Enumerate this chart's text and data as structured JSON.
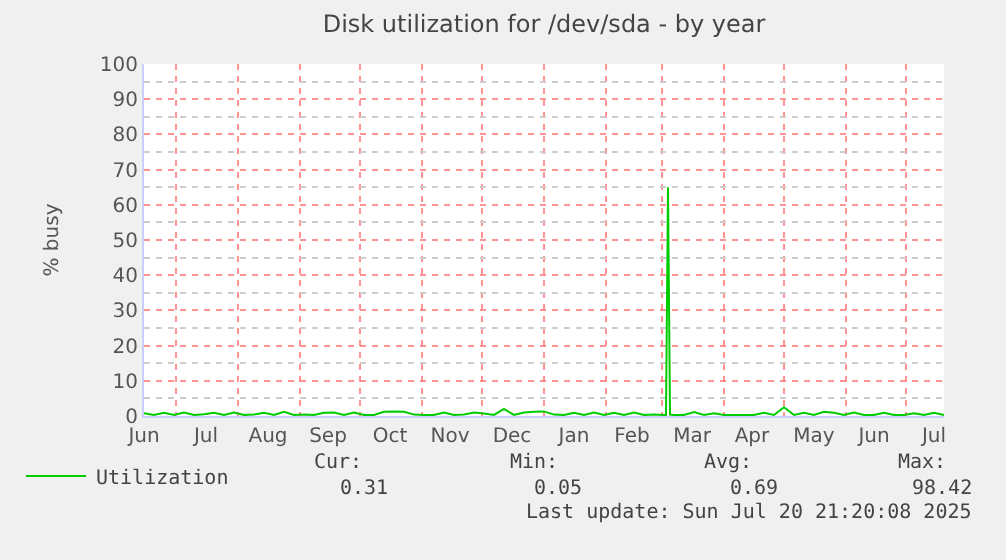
{
  "chart_data": {
    "type": "line",
    "title": "Disk utilization for /dev/sda - by year",
    "ylabel": "% busy",
    "x": [
      "2024-06-15",
      "2024-06-20",
      "2024-06-25",
      "2024-06-30",
      "2024-07-05",
      "2024-07-10",
      "2024-07-15",
      "2024-07-20",
      "2024-07-25",
      "2024-07-30",
      "2024-08-04",
      "2024-08-09",
      "2024-08-14",
      "2024-08-19",
      "2024-08-24",
      "2024-08-29",
      "2024-09-03",
      "2024-09-08",
      "2024-09-13",
      "2024-09-18",
      "2024-09-23",
      "2024-09-28",
      "2024-10-03",
      "2024-10-08",
      "2024-10-13",
      "2024-10-18",
      "2024-10-23",
      "2024-10-28",
      "2024-11-02",
      "2024-11-07",
      "2024-11-12",
      "2024-11-17",
      "2024-11-22",
      "2024-11-27",
      "2024-12-02",
      "2024-12-07",
      "2024-12-12",
      "2024-12-17",
      "2024-12-22",
      "2024-12-27",
      "2025-01-01",
      "2025-01-06",
      "2025-01-11",
      "2025-01-16",
      "2025-01-21",
      "2025-01-26",
      "2025-01-31",
      "2025-02-05",
      "2025-02-10",
      "2025-02-15",
      "2025-02-20",
      "2025-02-25",
      "2025-03-02",
      "2025-03-03",
      "2025-03-04",
      "2025-03-05",
      "2025-03-07",
      "2025-03-12",
      "2025-03-17",
      "2025-03-22",
      "2025-03-27",
      "2025-04-01",
      "2025-04-06",
      "2025-04-11",
      "2025-04-16",
      "2025-04-21",
      "2025-04-26",
      "2025-05-01",
      "2025-05-06",
      "2025-05-11",
      "2025-05-16",
      "2025-05-21",
      "2025-05-26",
      "2025-05-31",
      "2025-06-05",
      "2025-06-10",
      "2025-06-15",
      "2025-06-20",
      "2025-06-25",
      "2025-06-30",
      "2025-07-05",
      "2025-07-10",
      "2025-07-15",
      "2025-07-20"
    ],
    "series": [
      {
        "name": "Utilization",
        "color": "#00cc00",
        "values": [
          0.8,
          0.3,
          0.9,
          0.3,
          1.0,
          0.3,
          0.5,
          0.9,
          0.3,
          1.0,
          0.3,
          0.4,
          0.9,
          0.3,
          1.2,
          0.3,
          0.4,
          0.3,
          0.9,
          1.0,
          0.3,
          1.0,
          0.3,
          0.3,
          1.2,
          1.3,
          1.2,
          0.4,
          0.3,
          0.3,
          1.0,
          0.3,
          0.4,
          1.0,
          0.7,
          0.3,
          2.0,
          0.3,
          1.0,
          1.2,
          1.3,
          0.4,
          0.3,
          0.9,
          0.3,
          1.0,
          0.3,
          0.9,
          0.3,
          1.0,
          0.3,
          0.4,
          0.3,
          0.3,
          65,
          0.4,
          0.3,
          0.3,
          1.1,
          0.3,
          0.8,
          0.3,
          0.3,
          0.3,
          0.3,
          0.9,
          0.3,
          2.5,
          0.3,
          0.9,
          0.3,
          1.2,
          0.9,
          0.3,
          1.0,
          0.3,
          0.3,
          0.9,
          0.3,
          0.3,
          0.8,
          0.3,
          0.9,
          0.3
        ]
      }
    ],
    "xlim": [
      "2024-06-15",
      "2025-07-20"
    ],
    "xticks": [
      {
        "value": "2024-06-15",
        "label": "Jun"
      },
      {
        "value": "2024-07-16",
        "label": "Jul"
      },
      {
        "value": "2024-08-16",
        "label": "Aug"
      },
      {
        "value": "2024-09-15",
        "label": "Sep"
      },
      {
        "value": "2024-10-16",
        "label": "Oct"
      },
      {
        "value": "2024-11-15",
        "label": "Nov"
      },
      {
        "value": "2024-12-16",
        "label": "Dec"
      },
      {
        "value": "2025-01-16",
        "label": "Jan"
      },
      {
        "value": "2025-02-14",
        "label": "Feb"
      },
      {
        "value": "2025-03-16",
        "label": "Mar"
      },
      {
        "value": "2025-04-15",
        "label": "Apr"
      },
      {
        "value": "2025-05-16",
        "label": "May"
      },
      {
        "value": "2025-06-15",
        "label": "Jun"
      },
      {
        "value": "2025-07-15",
        "label": "Jul"
      },
      {
        "value": "2024-07-01",
        "label": null
      },
      {
        "value": "2024-08-01",
        "label": null
      },
      {
        "value": "2024-09-01",
        "label": null
      },
      {
        "value": "2024-10-01",
        "label": null
      },
      {
        "value": "2024-11-01",
        "label": null
      },
      {
        "value": "2024-12-01",
        "label": null
      },
      {
        "value": "2025-01-01",
        "label": null
      },
      {
        "value": "2025-02-01",
        "label": null
      },
      {
        "value": "2025-03-01",
        "label": null
      },
      {
        "value": "2025-04-01",
        "label": null
      },
      {
        "value": "2025-05-01",
        "label": null
      },
      {
        "value": "2025-06-01",
        "label": null
      },
      {
        "value": "2025-07-01",
        "label": null
      }
    ],
    "ylim": [
      0,
      100
    ],
    "yticks": [
      0,
      10,
      20,
      30,
      40,
      50,
      60,
      70,
      80,
      90,
      100,
      {
        "value": 5,
        "label": null
      },
      {
        "value": 15,
        "label": null
      },
      {
        "value": 25,
        "label": null
      },
      {
        "value": 35,
        "label": null
      },
      {
        "value": 45,
        "label": null
      },
      {
        "value": 55,
        "label": null
      },
      {
        "value": 65,
        "label": null
      },
      {
        "value": 75,
        "label": null
      },
      {
        "value": 85,
        "label": null
      },
      {
        "value": 95,
        "label": null
      }
    ],
    "grid": true,
    "legend": "bottom left",
    "marker": "none",
    "line_style": "solid",
    "annotations": [
      "Cur:",
      "Min:",
      "Avg:",
      "Max:",
      "0.31",
      "0.05",
      "0.69",
      "98.42",
      "Last update: Sun Jul 20 21:20:08 2025"
    ]
  }
}
